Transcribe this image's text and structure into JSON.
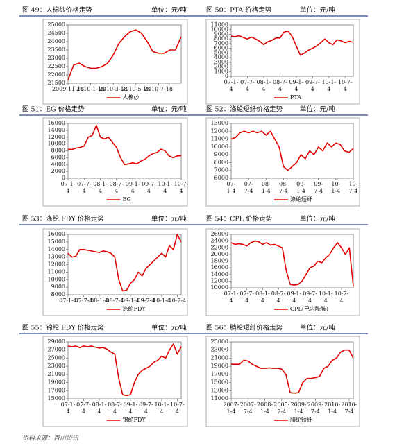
{
  "source": "资料来源：百川资讯",
  "chart_data": [
    {
      "type": "line",
      "title": "图 49：人棉纱价格走势",
      "unit": "单位：元/吨",
      "categories": [
        [
          "2009-11-18"
        ],
        null,
        null,
        null,
        [
          "2010-1-18"
        ],
        null,
        null,
        null,
        [
          "2010-3-18"
        ],
        null,
        null,
        null,
        [
          "2010-5-18"
        ],
        null,
        null,
        null,
        [
          "2010-7-18"
        ],
        null,
        null,
        null,
        null
      ],
      "series": [
        {
          "name": "人棉纱",
          "color": "#e00000",
          "values": [
            21700,
            22600,
            22700,
            22500,
            22400,
            22400,
            22500,
            22700,
            23200,
            23900,
            24300,
            24600,
            24700,
            24500,
            24000,
            23400,
            23300,
            23300,
            23500,
            23500,
            24300
          ]
        }
      ],
      "ylim": [
        21500,
        25000
      ],
      "yticks": [
        21500,
        22000,
        22500,
        23000,
        23500,
        24000,
        24500,
        25000
      ]
    },
    {
      "type": "line",
      "title": "图 50：PTA 价格走势",
      "unit": "单位：元/吨",
      "categories": [
        [
          "07-1-",
          "4"
        ],
        null,
        null,
        null,
        [
          "07-7-",
          "4"
        ],
        null,
        null,
        null,
        [
          "08-1-",
          "4"
        ],
        null,
        null,
        null,
        [
          "08-7-",
          "4"
        ],
        null,
        null,
        null,
        [
          "09-1-",
          "4"
        ],
        null,
        null,
        null,
        [
          "09-7-",
          "4"
        ],
        null,
        null,
        null,
        [
          "10-1-",
          "4"
        ],
        null,
        null,
        null,
        [
          "10-7-",
          "4"
        ],
        null,
        null
      ],
      "series": [
        {
          "name": "PTA",
          "color": "#e00000",
          "values": [
            8600,
            8500,
            8700,
            8300,
            8000,
            8400,
            8000,
            7500,
            6800,
            7400,
            7700,
            8200,
            8200,
            9500,
            9700,
            8500,
            6500,
            4500,
            5000,
            5600,
            6000,
            6500,
            7200,
            8000,
            7200,
            6800,
            7800,
            7600,
            7200,
            7500,
            7300
          ]
        }
      ],
      "ylim": [
        0,
        11000
      ],
      "yticks": [
        0,
        1000,
        2000,
        3000,
        4000,
        5000,
        6000,
        7000,
        8000,
        9000,
        10000,
        11000
      ]
    },
    {
      "type": "line",
      "title": "图 51：EG 价格走势",
      "unit": "单位：元/吨",
      "categories": [
        [
          "07-1-",
          "4"
        ],
        null,
        null,
        null,
        [
          "07-7-",
          "4"
        ],
        null,
        null,
        null,
        [
          "08-1-",
          "4"
        ],
        null,
        null,
        null,
        [
          "08-7-",
          "4"
        ],
        null,
        null,
        null,
        [
          "09-1-",
          "4"
        ],
        null,
        null,
        null,
        [
          "09-7-",
          "4"
        ],
        null,
        null,
        null,
        [
          "10-1-",
          "4"
        ],
        null,
        null,
        null,
        [
          "10-7-",
          "4"
        ]
      ],
      "series": [
        {
          "name": "EG",
          "color": "#e00000",
          "values": [
            8500,
            8400,
            8800,
            9000,
            9400,
            12000,
            12500,
            15500,
            12000,
            11500,
            12000,
            10500,
            9000,
            6000,
            4000,
            4200,
            4500,
            4200,
            5000,
            5500,
            6500,
            7200,
            7500,
            8500,
            8000,
            6500,
            6000,
            6500,
            6600
          ]
        }
      ],
      "ylim": [
        0,
        16000
      ],
      "yticks": [
        0,
        2000,
        4000,
        6000,
        8000,
        10000,
        12000,
        14000,
        16000
      ]
    },
    {
      "type": "line",
      "title": "图 52：涤纶短纤价格走势",
      "unit": "单位：元/吨",
      "categories": [
        [
          "07-",
          "1-4"
        ],
        null,
        null,
        null,
        [
          "07-",
          "7-4"
        ],
        null,
        null,
        null,
        [
          "08-",
          "1-4"
        ],
        null,
        null,
        null,
        [
          "08-",
          "7-4"
        ],
        null,
        null,
        null,
        [
          "09-",
          "1-4"
        ],
        null,
        null,
        null,
        [
          "09-",
          "7-4"
        ],
        null,
        null,
        null,
        [
          "10-",
          "1-4"
        ],
        null,
        null,
        null,
        [
          "10-",
          "7-4"
        ]
      ],
      "series": [
        {
          "name": "涤纶短纤",
          "color": "#e00000",
          "values": [
            11000,
            11200,
            11800,
            12000,
            11800,
            12000,
            11800,
            12000,
            11500,
            12000,
            11000,
            10000,
            7500,
            7000,
            7500,
            8000,
            9000,
            8500,
            9500,
            9000,
            10000,
            9500,
            10500,
            10000,
            10500,
            10300,
            9500,
            9300,
            9800
          ]
        }
      ],
      "ylim": [
        6000,
        13000
      ],
      "yticks": [
        6000,
        7000,
        8000,
        9000,
        10000,
        11000,
        12000,
        13000
      ]
    },
    {
      "type": "line",
      "title": "图 53：涤纶 FDY 价格走势",
      "unit": "单位：元/吨",
      "categories": [
        [
          "07-1-4"
        ],
        null,
        null,
        null,
        [
          "07-7-4"
        ],
        null,
        null,
        null,
        [
          "08-1-4"
        ],
        null,
        null,
        null,
        [
          "08-7-4"
        ],
        null,
        null,
        null,
        [
          "09-1-4"
        ],
        null,
        null,
        null,
        [
          "09-7-4"
        ],
        null,
        null,
        null,
        [
          "10-1-4"
        ],
        null,
        null,
        null,
        [
          "10-7-4"
        ],
        null
      ],
      "series": [
        {
          "name": "涤纶FDY",
          "color": "#e00000",
          "values": [
            13500,
            13000,
            13100,
            14000,
            14000,
            13900,
            13800,
            13700,
            13600,
            13800,
            13700,
            13500,
            13000,
            10000,
            8500,
            8600,
            9500,
            10000,
            11000,
            10500,
            11500,
            12000,
            12500,
            13000,
            13500,
            13000,
            14500,
            14000,
            16000,
            15000
          ]
        }
      ],
      "ylim": [
        8000,
        16000
      ],
      "yticks": [
        8000,
        9000,
        10000,
        11000,
        12000,
        13000,
        14000,
        15000,
        16000
      ]
    },
    {
      "type": "line",
      "title": "图 54：CPL 价格走势",
      "unit": "单位：元/吨",
      "categories": [
        [
          "07-1-",
          "4"
        ],
        null,
        null,
        null,
        [
          "07-7-",
          "4"
        ],
        null,
        null,
        null,
        [
          "08-1-",
          "4"
        ],
        null,
        null,
        null,
        [
          "08-7-",
          "4"
        ],
        null,
        null,
        null,
        [
          "09-1-",
          "4"
        ],
        null,
        null,
        null,
        [
          "09-7-",
          "4"
        ],
        null,
        null,
        null,
        [
          "10-1-",
          "4"
        ],
        null,
        null,
        null,
        [
          "10-7-",
          "4"
        ],
        null,
        null,
        null
      ],
      "series": [
        {
          "name": "CPL(己内酰胺)",
          "color": "#e00000",
          "values": [
            23500,
            23000,
            23200,
            23000,
            22500,
            23500,
            24000,
            23800,
            23000,
            23500,
            22800,
            23000,
            22500,
            22000,
            15000,
            11000,
            10800,
            11000,
            12000,
            14000,
            16000,
            16500,
            18000,
            17500,
            19000,
            20000,
            22000,
            23500,
            22000,
            20000,
            22000,
            10500
          ]
        }
      ],
      "ylim": [
        10000,
        26000
      ],
      "yticks": [
        10000,
        12000,
        14000,
        16000,
        18000,
        20000,
        22000,
        24000,
        26000
      ]
    },
    {
      "type": "line",
      "title": "图 55：锦纶 FDY 价格走势",
      "unit": "单位：元/吨",
      "categories": [
        [
          "07-1-",
          "4"
        ],
        null,
        null,
        null,
        [
          "07-7-",
          "4"
        ],
        null,
        null,
        null,
        [
          "08-1-",
          "4"
        ],
        null,
        null,
        null,
        [
          "08-7-",
          "4"
        ],
        null,
        null,
        null,
        [
          "09-1-",
          "4"
        ],
        null,
        null,
        null,
        [
          "09-7-",
          "4"
        ],
        null,
        null,
        null,
        [
          "10-1-",
          "4"
        ],
        null,
        null,
        null,
        [
          "10-7-",
          "4"
        ],
        null
      ],
      "series": [
        {
          "name": "锦纶FDY",
          "color": "#e00000",
          "values": [
            28000,
            27800,
            28000,
            27600,
            28000,
            27800,
            28000,
            27700,
            27500,
            27600,
            27200,
            26500,
            26000,
            20000,
            16000,
            15800,
            16000,
            19000,
            21000,
            22000,
            22500,
            23000,
            24000,
            24500,
            25500,
            25000,
            27000,
            28500,
            26000,
            27800
          ]
        }
      ],
      "ylim": [
        15000,
        29000
      ],
      "yticks": [
        15000,
        17000,
        19000,
        21000,
        23000,
        25000,
        27000,
        29000
      ]
    },
    {
      "type": "line",
      "title": "图 56：腈纶短纤价格走势",
      "unit": "单位：元/吨",
      "categories": [
        [
          "2007-",
          "1-4"
        ],
        null,
        null,
        null,
        [
          "2007-",
          "7-4"
        ],
        null,
        null,
        null,
        [
          "2008-",
          "1-4"
        ],
        null,
        null,
        null,
        [
          "2008-",
          "7-4"
        ],
        null,
        null,
        null,
        [
          "2009-",
          "1-4"
        ],
        null,
        null,
        null,
        [
          "2009-",
          "7-4"
        ],
        null,
        null,
        null,
        [
          "2010-",
          "1-4"
        ],
        null,
        null,
        null,
        [
          "2010-",
          "7-4"
        ],
        null
      ],
      "series": [
        {
          "name": "腈纶短纤",
          "color": "#e00000",
          "values": [
            19500,
            19500,
            19500,
            20500,
            20300,
            19500,
            19000,
            18500,
            18500,
            18600,
            18500,
            18500,
            18300,
            17000,
            12500,
            12400,
            12500,
            15000,
            16000,
            16000,
            16200,
            16500,
            18500,
            19000,
            20500,
            21000,
            22500,
            23000,
            23000,
            21000
          ]
        }
      ],
      "ylim": [
        11000,
        25000
      ],
      "yticks": [
        11000,
        13000,
        15000,
        17000,
        19000,
        21000,
        23000,
        25000
      ]
    }
  ]
}
